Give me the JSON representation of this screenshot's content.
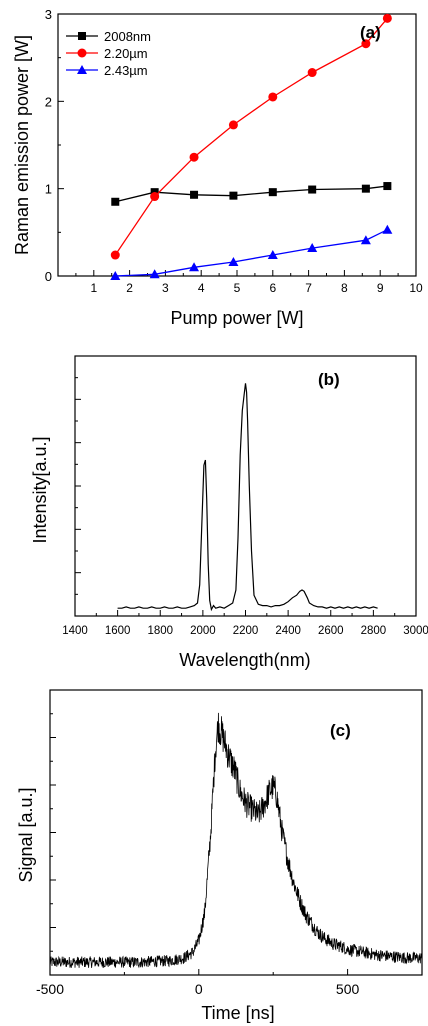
{
  "chart_data": [
    {
      "id": "a",
      "type": "line",
      "panel_label": "(a)",
      "xlabel": "Pump power [W]",
      "ylabel": "Raman emission power [W]",
      "xlim": [
        0,
        10
      ],
      "ylim": [
        0,
        3
      ],
      "xticks": [
        1,
        2,
        3,
        4,
        5,
        6,
        7,
        8,
        9,
        10
      ],
      "yticks": [
        0,
        1,
        2,
        3
      ],
      "legend_position": "top-left",
      "series": [
        {
          "name": "2008nm",
          "color": "#000000",
          "marker": "square",
          "x": [
            1.6,
            2.7,
            3.8,
            4.9,
            6.0,
            7.1,
            8.6,
            9.2
          ],
          "y": [
            0.85,
            0.96,
            0.93,
            0.92,
            0.96,
            0.99,
            1.0,
            1.03
          ]
        },
        {
          "name": "2.20µm",
          "color": "#ff0000",
          "marker": "circle",
          "x": [
            1.6,
            2.7,
            3.8,
            4.9,
            6.0,
            7.1,
            8.6,
            9.2
          ],
          "y": [
            0.24,
            0.91,
            1.36,
            1.73,
            2.05,
            2.33,
            2.66,
            2.95
          ]
        },
        {
          "name": "2.43µm",
          "color": "#0000ff",
          "marker": "triangle",
          "x": [
            1.6,
            2.7,
            3.8,
            4.9,
            6.0,
            7.1,
            8.6,
            9.2
          ],
          "y": [
            0.0,
            0.02,
            0.1,
            0.16,
            0.24,
            0.32,
            0.41,
            0.53
          ]
        }
      ]
    },
    {
      "id": "b",
      "type": "line",
      "panel_label": "(b)",
      "xlabel": "Wavelength(nm)",
      "ylabel": "Intensity[a.u.]",
      "xlim": [
        1400,
        3000
      ],
      "ylim": [
        0,
        1
      ],
      "xticks": [
        1400,
        1600,
        1800,
        2000,
        2200,
        2400,
        2600,
        2800,
        3000
      ],
      "series": [
        {
          "name": "",
          "color": "#000000",
          "x": [
            1600,
            1620,
            1640,
            1660,
            1680,
            1700,
            1720,
            1740,
            1760,
            1780,
            1800,
            1820,
            1840,
            1860,
            1880,
            1900,
            1920,
            1940,
            1960,
            1975,
            1985,
            1995,
            2005,
            2012,
            2018,
            2025,
            2032,
            2040,
            2050,
            2060,
            2080,
            2100,
            2120,
            2140,
            2155,
            2165,
            2175,
            2185,
            2195,
            2200,
            2205,
            2210,
            2218,
            2228,
            2240,
            2260,
            2280,
            2300,
            2320,
            2340,
            2360,
            2380,
            2400,
            2420,
            2440,
            2455,
            2465,
            2475,
            2490,
            2500,
            2520,
            2540,
            2560,
            2580,
            2600,
            2620,
            2640,
            2660,
            2680,
            2700,
            2720,
            2740,
            2760,
            2780,
            2800,
            2820
          ],
          "y": [
            0.03,
            0.03,
            0.035,
            0.03,
            0.03,
            0.035,
            0.03,
            0.03,
            0.035,
            0.03,
            0.03,
            0.035,
            0.03,
            0.03,
            0.035,
            0.03,
            0.03,
            0.035,
            0.04,
            0.05,
            0.12,
            0.35,
            0.58,
            0.6,
            0.45,
            0.2,
            0.06,
            0.025,
            0.04,
            0.03,
            0.035,
            0.03,
            0.04,
            0.05,
            0.1,
            0.3,
            0.62,
            0.79,
            0.86,
            0.895,
            0.86,
            0.75,
            0.5,
            0.25,
            0.08,
            0.045,
            0.04,
            0.04,
            0.035,
            0.04,
            0.04,
            0.045,
            0.055,
            0.07,
            0.08,
            0.095,
            0.1,
            0.095,
            0.07,
            0.05,
            0.04,
            0.035,
            0.035,
            0.03,
            0.035,
            0.03,
            0.035,
            0.03,
            0.035,
            0.03,
            0.035,
            0.03,
            0.035,
            0.03,
            0.035,
            0.03
          ]
        }
      ]
    },
    {
      "id": "c",
      "type": "line",
      "panel_label": "(c)",
      "xlabel": "Time [ns]",
      "ylabel": "Signal [a.u.]",
      "xlim": [
        -500,
        750
      ],
      "ylim": [
        0,
        1
      ],
      "xticks": [
        -500,
        0,
        500
      ],
      "series": [
        {
          "name": "",
          "color": "#000000",
          "noisy": true,
          "x": [
            -500,
            -400,
            -300,
            -200,
            -100,
            -50,
            -20,
            0,
            20,
            40,
            55,
            65,
            80,
            100,
            120,
            140,
            160,
            180,
            200,
            220,
            240,
            250,
            260,
            280,
            300,
            320,
            340,
            360,
            380,
            400,
            420,
            450,
            480,
            500,
            550,
            600,
            650,
            700,
            750
          ],
          "y": [
            0.045,
            0.045,
            0.045,
            0.045,
            0.05,
            0.06,
            0.08,
            0.12,
            0.22,
            0.5,
            0.78,
            0.88,
            0.84,
            0.77,
            0.72,
            0.64,
            0.6,
            0.58,
            0.56,
            0.6,
            0.65,
            0.66,
            0.64,
            0.5,
            0.4,
            0.32,
            0.26,
            0.21,
            0.18,
            0.15,
            0.13,
            0.11,
            0.1,
            0.09,
            0.08,
            0.07,
            0.065,
            0.06,
            0.06
          ]
        }
      ]
    }
  ]
}
